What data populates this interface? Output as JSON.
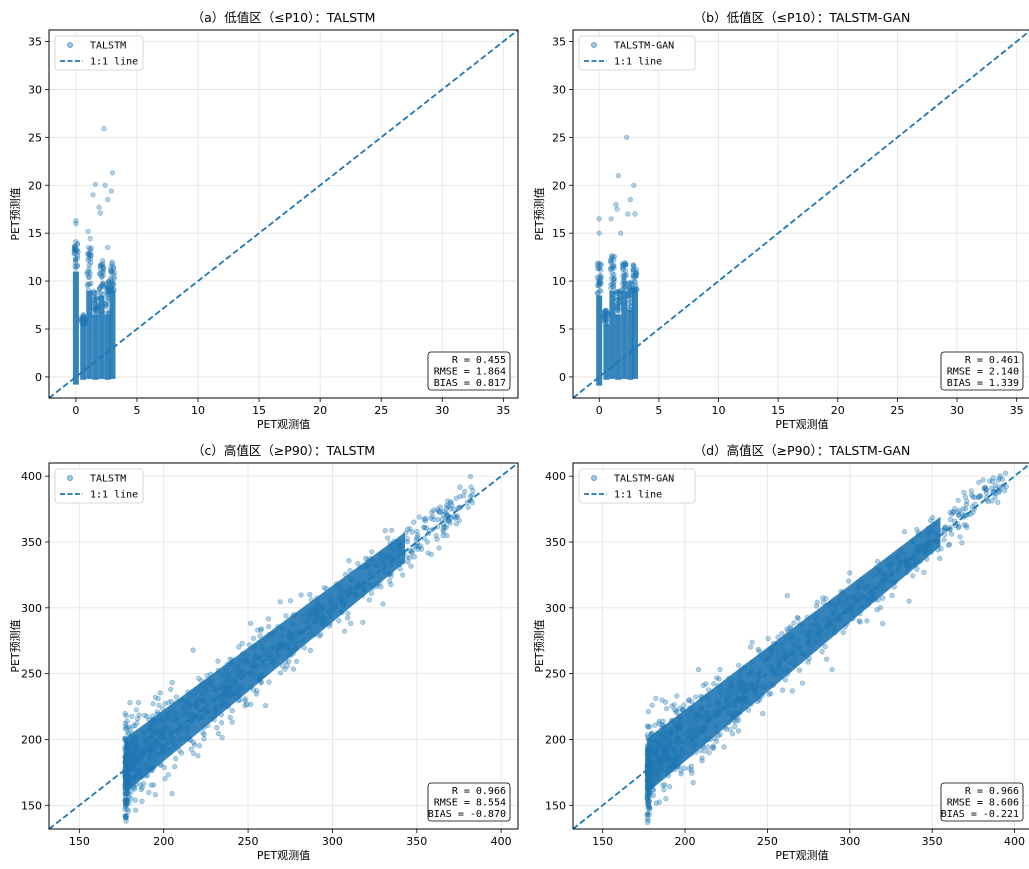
{
  "chart_data": [
    {
      "type": "scatter",
      "title": "（a）低值区（≤P10）：TALSTM",
      "xlabel": "PET观测值",
      "ylabel": "PET预测值",
      "xlim": [
        -2.2,
        36.2
      ],
      "ylim": [
        -2.2,
        36.2
      ],
      "xticks": [
        0,
        5,
        10,
        15,
        20,
        25,
        30,
        35
      ],
      "yticks": [
        0,
        5,
        10,
        15,
        20,
        25,
        30,
        35
      ],
      "grid": true,
      "legend": {
        "position": "top-left",
        "entries": [
          "TALSTM",
          "1:1 line"
        ]
      },
      "series": [
        {
          "name": "TALSTM",
          "color": "#1f77b4",
          "columns": [
            {
              "x": 0.0,
              "ymin": -0.8,
              "ymax": 14.2,
              "dense_max": 11.0
            },
            {
              "x": 0.6,
              "ymin": -0.3,
              "ymax": 6.5,
              "dense_max": 5.5
            },
            {
              "x": 1.1,
              "ymin": -0.2,
              "ymax": 14.6,
              "dense_max": 9.0
            },
            {
              "x": 1.6,
              "ymin": -0.3,
              "ymax": 9.0,
              "dense_max": 6.5
            },
            {
              "x": 2.1,
              "ymin": -0.2,
              "ymax": 12.5,
              "dense_max": 8.5
            },
            {
              "x": 2.6,
              "ymin": -0.3,
              "ymax": 10.0,
              "dense_max": 6.5
            },
            {
              "x": 3.0,
              "ymin": -0.2,
              "ymax": 12.0,
              "dense_max": 9.0
            }
          ],
          "outliers": [
            [
              0.0,
              16.3
            ],
            [
              0.0,
              16.0
            ],
            [
              1.4,
              19.0
            ],
            [
              1.6,
              20.1
            ],
            [
              1.9,
              17.7
            ],
            [
              2.0,
              17.1
            ],
            [
              2.3,
              25.9
            ],
            [
              2.4,
              20.0
            ],
            [
              2.6,
              18.5
            ],
            [
              2.6,
              13.5
            ],
            [
              2.9,
              19.4
            ],
            [
              3.0,
              21.3
            ],
            [
              1.0,
              15.2
            ]
          ]
        },
        {
          "name": "1:1 line",
          "color": "#1f77b4",
          "line": "dashed"
        }
      ],
      "stats": {
        "r": "R = 0.455",
        "rmse": "RMSE = 1.864",
        "bias": "BIAS = 0.817"
      }
    },
    {
      "type": "scatter",
      "title": "（b）低值区（≤P10）：TALSTM-GAN",
      "xlabel": "PET观测值",
      "ylabel": "PET预测值",
      "xlim": [
        -2.2,
        36.2
      ],
      "ylim": [
        -2.2,
        36.2
      ],
      "xticks": [
        0,
        5,
        10,
        15,
        20,
        25,
        30,
        35
      ],
      "yticks": [
        0,
        5,
        10,
        15,
        20,
        25,
        30,
        35
      ],
      "grid": true,
      "legend": {
        "position": "top-left",
        "entries": [
          "TALSTM-GAN",
          "1:1 line"
        ]
      },
      "series": [
        {
          "name": "TALSTM-GAN",
          "color": "#1f77b4",
          "columns": [
            {
              "x": 0.0,
              "ymin": -0.9,
              "ymax": 12.0,
              "dense_max": 8.5
            },
            {
              "x": 0.6,
              "ymin": -0.3,
              "ymax": 7.0,
              "dense_max": 5.5
            },
            {
              "x": 1.1,
              "ymin": -0.2,
              "ymax": 13.0,
              "dense_max": 9.0
            },
            {
              "x": 1.6,
              "ymin": -0.3,
              "ymax": 9.0,
              "dense_max": 6.5
            },
            {
              "x": 2.1,
              "ymin": -0.2,
              "ymax": 12.0,
              "dense_max": 9.0
            },
            {
              "x": 2.6,
              "ymin": -0.3,
              "ymax": 10.0,
              "dense_max": 7.0
            },
            {
              "x": 3.0,
              "ymin": -0.2,
              "ymax": 12.0,
              "dense_max": 9.0
            }
          ],
          "outliers": [
            [
              0.0,
              16.5
            ],
            [
              0.0,
              15.0
            ],
            [
              1.0,
              16.5
            ],
            [
              1.4,
              18.0
            ],
            [
              1.5,
              17.5
            ],
            [
              1.6,
              21.0
            ],
            [
              1.8,
              15.0
            ],
            [
              2.3,
              25.0
            ],
            [
              2.4,
              17.0
            ],
            [
              2.6,
              18.5
            ],
            [
              2.9,
              20.0
            ],
            [
              3.0,
              17.0
            ]
          ]
        },
        {
          "name": "1:1 line",
          "color": "#1f77b4",
          "line": "dashed"
        }
      ],
      "stats": {
        "r": "R = 0.461",
        "rmse": "RMSE = 2.140",
        "bias": "BIAS = 1.339"
      }
    },
    {
      "type": "scatter",
      "title": "（c）高值区（≥P90）：TALSTM",
      "xlabel": "PET观测值",
      "ylabel": "PET预测值",
      "xlim": [
        132,
        410
      ],
      "ylim": [
        132,
        410
      ],
      "xticks": [
        150,
        200,
        250,
        300,
        350,
        400
      ],
      "yticks": [
        150,
        200,
        250,
        300,
        350,
        400
      ],
      "grid": true,
      "legend": {
        "position": "top-left",
        "entries": [
          "TALSTM",
          "1:1 line"
        ]
      },
      "series": [
        {
          "name": "TALSTM",
          "color": "#1f77b4",
          "x_range": [
            177,
            383
          ],
          "spread_at_low": 22,
          "spread_at_high": 9,
          "outliers": [
            [
              177,
              147
            ],
            [
              180,
              228
            ],
            [
              185,
              228
            ],
            [
              195,
              232
            ],
            [
              365,
              367
            ],
            [
              372,
              375
            ],
            [
              383,
              380
            ],
            [
              350,
              358
            ],
            [
              340,
              333
            ],
            [
              330,
              303
            ],
            [
              318,
              289
            ]
          ]
        },
        {
          "name": "1:1 line",
          "color": "#1f77b4",
          "line": "dashed"
        }
      ],
      "stats": {
        "r": "R = 0.966",
        "rmse": "RMSE = 8.554",
        "bias": "BIAS = -0.870"
      }
    },
    {
      "type": "scatter",
      "title": "（d）高值区（≥P90）：TALSTM-GAN",
      "xlabel": "PET观测值",
      "ylabel": "PET预测值",
      "xlim": [
        132,
        410
      ],
      "ylim": [
        132,
        410
      ],
      "xticks": [
        150,
        200,
        250,
        300,
        350,
        400
      ],
      "yticks": [
        150,
        200,
        250,
        300,
        350,
        400
      ],
      "grid": true,
      "legend": {
        "position": "top-left",
        "entries": [
          "TALSTM-GAN",
          "1:1 line"
        ]
      },
      "series": [
        {
          "name": "TALSTM-GAN",
          "color": "#1f77b4",
          "x_range": [
            177,
            395
          ],
          "spread_at_low": 22,
          "spread_at_high": 9,
          "outliers": [
            [
              177,
              143
            ],
            [
              180,
              226
            ],
            [
              186,
              230
            ],
            [
              195,
              233
            ],
            [
              352,
              364
            ],
            [
              378,
              384
            ],
            [
              388,
              388
            ],
            [
              395,
              392
            ],
            [
              345,
              327
            ],
            [
              320,
              288
            ],
            [
              336,
              305
            ]
          ]
        },
        {
          "name": "1:1 line",
          "color": "#1f77b4",
          "line": "dashed"
        }
      ],
      "stats": {
        "r": "R = 0.966",
        "rmse": "RMSE = 8.606",
        "bias": "BIAS = -0.221"
      }
    }
  ]
}
